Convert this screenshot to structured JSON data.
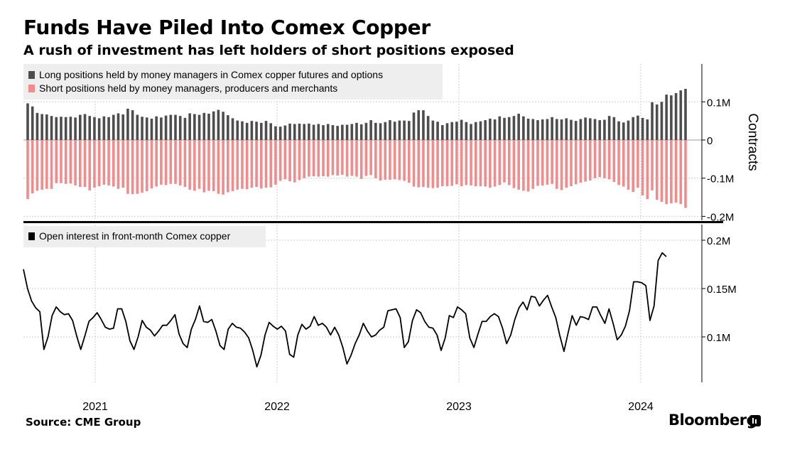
{
  "title": "Funds Have Piled Into Comex Copper",
  "subtitle": "A rush of investment has left holders of short positions exposed",
  "source": "Source: CME Group",
  "brand": "Bloomberg",
  "colors": {
    "long": "#4d4d4d",
    "short": "#f28b8b",
    "line": "#000000",
    "grid": "#cfcfcf",
    "legend_bg": "#eeeeee"
  },
  "chart_data": [
    {
      "type": "bar",
      "title": "",
      "ylabel": "Contracts",
      "ylim": [
        -0.2,
        0.2
      ],
      "yticks": [
        0.1,
        0,
        -0.1,
        -0.2
      ],
      "ytick_labels": [
        "0.1M",
        "0",
        "-0.1M",
        "-0.2M"
      ],
      "legend_placement": "top-left",
      "grid": true,
      "x_start": "2020-09",
      "x_end": "2024-02",
      "series": [
        {
          "name": "Long positions held by money managers in Comex copper futures and options",
          "values": [
            0.096,
            0.088,
            0.071,
            0.068,
            0.067,
            0.063,
            0.06,
            0.061,
            0.06,
            0.061,
            0.059,
            0.066,
            0.068,
            0.063,
            0.06,
            0.057,
            0.062,
            0.06,
            0.066,
            0.07,
            0.067,
            0.082,
            0.078,
            0.066,
            0.061,
            0.059,
            0.056,
            0.062,
            0.059,
            0.064,
            0.066,
            0.066,
            0.063,
            0.058,
            0.07,
            0.068,
            0.066,
            0.071,
            0.069,
            0.075,
            0.079,
            0.074,
            0.065,
            0.057,
            0.051,
            0.049,
            0.045,
            0.05,
            0.048,
            0.045,
            0.05,
            0.044,
            0.036,
            0.035,
            0.038,
            0.043,
            0.042,
            0.043,
            0.042,
            0.043,
            0.04,
            0.042,
            0.039,
            0.042,
            0.039,
            0.037,
            0.04,
            0.04,
            0.042,
            0.045,
            0.041,
            0.045,
            0.052,
            0.045,
            0.044,
            0.047,
            0.052,
            0.048,
            0.051,
            0.051,
            0.05,
            0.072,
            0.078,
            0.078,
            0.063,
            0.051,
            0.048,
            0.039,
            0.044,
            0.047,
            0.048,
            0.053,
            0.047,
            0.042,
            0.047,
            0.049,
            0.052,
            0.056,
            0.054,
            0.062,
            0.058,
            0.06,
            0.063,
            0.069,
            0.062,
            0.056,
            0.055,
            0.052,
            0.054,
            0.055,
            0.06,
            0.055,
            0.054,
            0.057,
            0.053,
            0.05,
            0.055,
            0.059,
            0.057,
            0.055,
            0.052,
            0.053,
            0.063,
            0.06,
            0.049,
            0.046,
            0.051,
            0.06,
            0.064,
            0.058,
            0.054,
            0.099,
            0.093,
            0.1,
            0.119,
            0.117,
            0.123,
            0.13,
            0.134
          ]
        },
        {
          "name": "Short positions held by money managers, producers and merchants",
          "values": [
            -0.155,
            -0.14,
            -0.133,
            -0.13,
            -0.128,
            -0.128,
            -0.113,
            -0.113,
            -0.115,
            -0.114,
            -0.119,
            -0.123,
            -0.123,
            -0.132,
            -0.125,
            -0.121,
            -0.117,
            -0.119,
            -0.122,
            -0.128,
            -0.125,
            -0.141,
            -0.142,
            -0.141,
            -0.138,
            -0.134,
            -0.127,
            -0.122,
            -0.117,
            -0.118,
            -0.115,
            -0.115,
            -0.119,
            -0.123,
            -0.13,
            -0.133,
            -0.128,
            -0.137,
            -0.133,
            -0.134,
            -0.141,
            -0.143,
            -0.137,
            -0.134,
            -0.13,
            -0.128,
            -0.129,
            -0.125,
            -0.123,
            -0.127,
            -0.125,
            -0.124,
            -0.117,
            -0.107,
            -0.103,
            -0.108,
            -0.111,
            -0.105,
            -0.1,
            -0.096,
            -0.095,
            -0.096,
            -0.095,
            -0.096,
            -0.092,
            -0.093,
            -0.091,
            -0.096,
            -0.094,
            -0.096,
            -0.102,
            -0.094,
            -0.092,
            -0.1,
            -0.106,
            -0.104,
            -0.104,
            -0.103,
            -0.105,
            -0.107,
            -0.112,
            -0.122,
            -0.124,
            -0.123,
            -0.125,
            -0.126,
            -0.125,
            -0.121,
            -0.121,
            -0.12,
            -0.116,
            -0.121,
            -0.118,
            -0.119,
            -0.121,
            -0.121,
            -0.122,
            -0.125,
            -0.122,
            -0.118,
            -0.111,
            -0.118,
            -0.126,
            -0.13,
            -0.133,
            -0.135,
            -0.128,
            -0.12,
            -0.119,
            -0.117,
            -0.115,
            -0.128,
            -0.131,
            -0.125,
            -0.121,
            -0.116,
            -0.112,
            -0.109,
            -0.106,
            -0.1,
            -0.097,
            -0.1,
            -0.103,
            -0.11,
            -0.118,
            -0.122,
            -0.13,
            -0.136,
            -0.125,
            -0.145,
            -0.155,
            -0.132,
            -0.157,
            -0.162,
            -0.168,
            -0.166,
            -0.164,
            -0.168,
            -0.178
          ]
        }
      ]
    },
    {
      "type": "line",
      "title": "",
      "ylabel": "",
      "ylim": [
        0.05,
        0.2
      ],
      "yticks": [
        0.2,
        0.15,
        0.1
      ],
      "ytick_labels": [
        "0.2M",
        "0.15M",
        "0.1M"
      ],
      "legend_placement": "top-left",
      "grid": true,
      "x_start": "2020-09",
      "x_end": "2024-02",
      "x_ticks": [
        {
          "date": "2021-01",
          "label": "2021"
        },
        {
          "date": "2022-01",
          "label": "2022"
        },
        {
          "date": "2023-01",
          "label": "2023"
        },
        {
          "date": "2024-01",
          "label": "2024"
        }
      ],
      "series": [
        {
          "name": "Open interest in front-month Comex copper",
          "values": [
            0.17,
            0.15,
            0.137,
            0.13,
            0.126,
            0.087,
            0.1,
            0.122,
            0.131,
            0.126,
            0.123,
            0.124,
            0.117,
            0.101,
            0.087,
            0.101,
            0.116,
            0.12,
            0.125,
            0.118,
            0.11,
            0.108,
            0.109,
            0.129,
            0.129,
            0.116,
            0.096,
            0.087,
            0.1,
            0.117,
            0.11,
            0.107,
            0.101,
            0.106,
            0.112,
            0.112,
            0.117,
            0.123,
            0.103,
            0.093,
            0.089,
            0.108,
            0.118,
            0.132,
            0.116,
            0.115,
            0.118,
            0.106,
            0.091,
            0.087,
            0.108,
            0.114,
            0.11,
            0.109,
            0.105,
            0.099,
            0.086,
            0.069,
            0.081,
            0.102,
            0.115,
            0.111,
            0.108,
            0.111,
            0.106,
            0.082,
            0.079,
            0.102,
            0.113,
            0.108,
            0.111,
            0.121,
            0.112,
            0.114,
            0.11,
            0.102,
            0.11,
            0.102,
            0.089,
            0.072,
            0.081,
            0.093,
            0.102,
            0.114,
            0.106,
            0.1,
            0.102,
            0.107,
            0.11,
            0.127,
            0.128,
            0.129,
            0.12,
            0.089,
            0.095,
            0.117,
            0.128,
            0.125,
            0.116,
            0.11,
            0.109,
            0.102,
            0.086,
            0.099,
            0.122,
            0.12,
            0.131,
            0.128,
            0.124,
            0.099,
            0.089,
            0.103,
            0.116,
            0.116,
            0.121,
            0.124,
            0.121,
            0.109,
            0.093,
            0.102,
            0.118,
            0.13,
            0.136,
            0.128,
            0.142,
            0.141,
            0.132,
            0.138,
            0.143,
            0.131,
            0.12,
            0.101,
            0.085,
            0.104,
            0.122,
            0.112,
            0.121,
            0.12,
            0.118,
            0.131,
            0.131,
            0.122,
            0.114,
            0.129,
            0.114,
            0.097,
            0.102,
            0.111,
            0.127,
            0.157,
            0.157,
            0.156,
            0.153,
            0.117,
            0.132,
            0.179,
            0.187,
            0.183
          ]
        }
      ]
    }
  ]
}
